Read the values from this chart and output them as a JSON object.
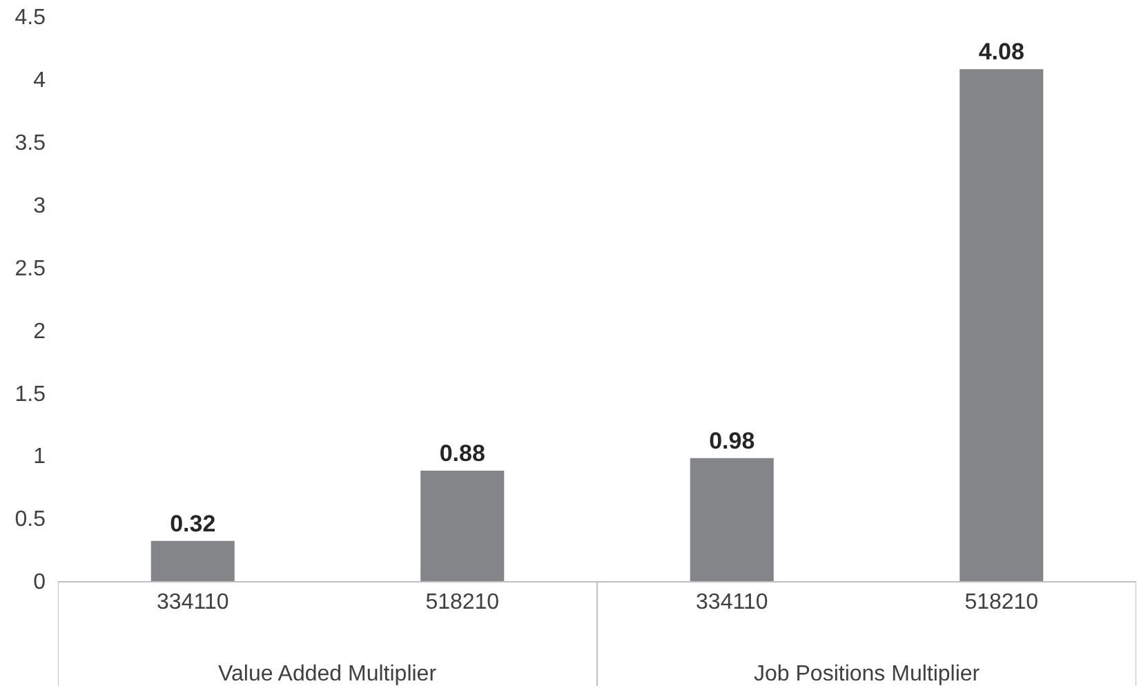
{
  "chart_data": {
    "type": "bar",
    "categories": [
      "334110",
      "518210",
      "334110",
      "518210"
    ],
    "values": [
      0.32,
      0.88,
      0.98,
      4.08
    ],
    "color": "#848589",
    "ylim": [
      0,
      4.5
    ],
    "yticks": [
      0,
      0.5,
      1,
      1.5,
      2,
      2.5,
      3,
      3.5,
      4,
      4.5
    ],
    "grid": false,
    "data_labels": true,
    "annotations": [
      "Value Added Multiplier",
      "Job Positions Multiplier"
    ]
  }
}
